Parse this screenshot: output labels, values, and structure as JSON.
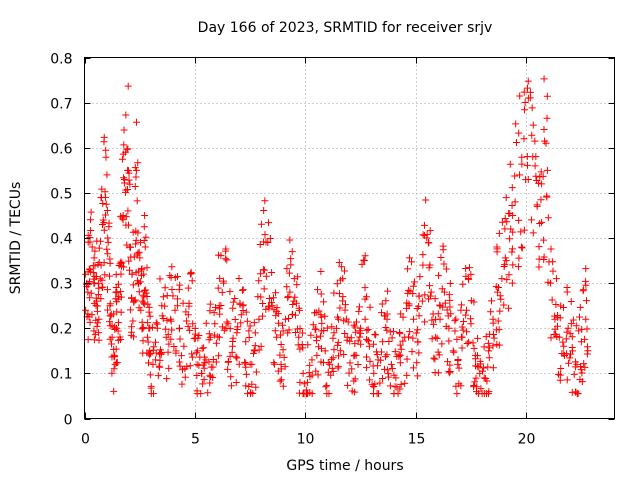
{
  "chart_data": {
    "type": "scatter",
    "title": "Day 166 of 2023, SRMTID for receiver srjv",
    "xlabel": "GPS time / hours",
    "ylabel": "SRMTID / TECUs",
    "xlim": [
      0,
      24
    ],
    "ylim": [
      0,
      0.8
    ],
    "xticks": [
      0,
      5,
      10,
      15,
      20
    ],
    "yticks": [
      0,
      0.1,
      0.2,
      0.3,
      0.4,
      0.5,
      0.6,
      0.7,
      0.8
    ],
    "grid": true,
    "marker": "plus",
    "color": "#ff0000",
    "x_range_of_data": [
      0,
      22.8
    ],
    "series": [
      {
        "name": "srjv",
        "x": [
          0.05,
          0.15,
          0.25,
          0.35,
          0.45,
          0.55,
          0.65,
          0.75,
          0.85,
          0.95,
          1.05,
          1.15,
          1.25,
          1.35,
          1.45,
          1.55,
          1.65,
          1.75,
          1.85,
          1.95,
          2.05,
          2.15,
          2.25,
          2.35,
          2.45,
          2.55,
          2.65,
          2.75,
          2.85,
          2.95,
          3.1,
          3.3,
          3.5,
          3.7,
          3.9,
          4.1,
          4.3,
          4.5,
          4.7,
          4.9,
          5.1,
          5.3,
          5.5,
          5.7,
          5.9,
          6.1,
          6.3,
          6.5,
          6.7,
          6.9,
          7.1,
          7.3,
          7.5,
          7.7,
          7.9,
          8.1,
          8.3,
          8.5,
          8.7,
          8.9,
          9.1,
          9.3,
          9.5,
          9.7,
          9.9,
          10.1,
          10.3,
          10.5,
          10.7,
          10.9,
          11.1,
          11.3,
          11.5,
          11.7,
          11.9,
          12.1,
          12.3,
          12.5,
          12.7,
          12.9,
          13.1,
          13.3,
          13.5,
          13.7,
          13.9,
          14.1,
          14.3,
          14.5,
          14.7,
          14.9,
          15.1,
          15.3,
          15.5,
          15.7,
          15.9,
          16.1,
          16.3,
          16.5,
          16.7,
          16.9,
          17.1,
          17.3,
          17.5,
          17.7,
          17.9,
          18.1,
          18.3,
          18.5,
          18.7,
          18.9,
          19.1,
          19.3,
          19.5,
          19.7,
          19.9,
          20.1,
          20.3,
          20.5,
          20.7,
          20.9,
          21.1,
          21.3,
          21.5,
          21.7,
          21.9,
          22.1,
          22.3,
          22.5,
          22.7
        ],
        "y": [
          0.24,
          0.28,
          0.33,
          0.38,
          0.3,
          0.26,
          0.22,
          0.34,
          0.44,
          0.49,
          0.4,
          0.25,
          0.18,
          0.14,
          0.2,
          0.27,
          0.32,
          0.45,
          0.59,
          0.55,
          0.38,
          0.32,
          0.26,
          0.55,
          0.3,
          0.24,
          0.2,
          0.38,
          0.18,
          0.15,
          0.12,
          0.2,
          0.25,
          0.18,
          0.22,
          0.24,
          0.2,
          0.16,
          0.23,
          0.21,
          0.12,
          0.1,
          0.13,
          0.18,
          0.21,
          0.25,
          0.3,
          0.21,
          0.16,
          0.19,
          0.23,
          0.17,
          0.12,
          0.15,
          0.22,
          0.33,
          0.39,
          0.25,
          0.18,
          0.12,
          0.22,
          0.28,
          0.31,
          0.18,
          0.1,
          0.08,
          0.13,
          0.18,
          0.23,
          0.15,
          0.12,
          0.19,
          0.22,
          0.27,
          0.18,
          0.11,
          0.14,
          0.2,
          0.29,
          0.16,
          0.1,
          0.13,
          0.17,
          0.22,
          0.12,
          0.09,
          0.14,
          0.18,
          0.25,
          0.22,
          0.17,
          0.26,
          0.4,
          0.28,
          0.18,
          0.22,
          0.28,
          0.2,
          0.15,
          0.12,
          0.18,
          0.24,
          0.21,
          0.14,
          0.1,
          0.09,
          0.15,
          0.22,
          0.28,
          0.31,
          0.35,
          0.42,
          0.48,
          0.54,
          0.62,
          0.71,
          0.58,
          0.47,
          0.52,
          0.61,
          0.3,
          0.22,
          0.18,
          0.16,
          0.2,
          0.15,
          0.12,
          0.17,
          0.22
        ]
      }
    ]
  }
}
